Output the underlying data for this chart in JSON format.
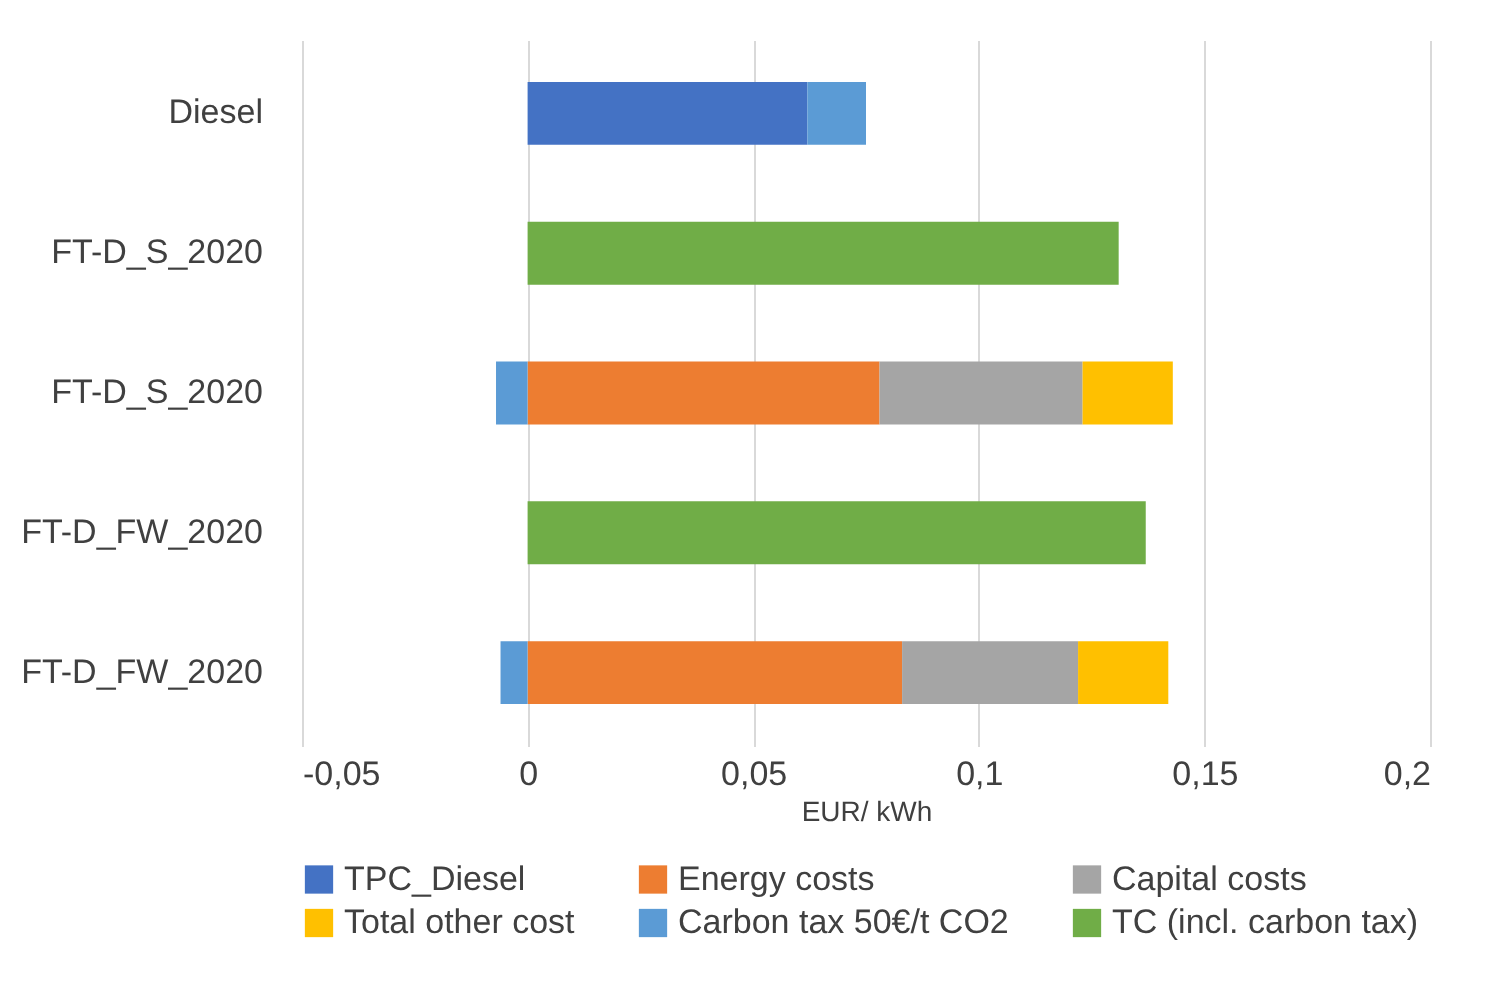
{
  "chart_data": {
    "type": "bar",
    "orientation": "horizontal",
    "stacked": true,
    "categories": [
      "Diesel",
      "FT-D_S_2020",
      "FT-D_S_2020",
      "FT-D_FW_2020",
      "FT-D_FW_2020"
    ],
    "series": [
      {
        "name": "TPC_Diesel",
        "color": "#4472c4",
        "values": [
          0.062,
          null,
          null,
          null,
          null
        ]
      },
      {
        "name": "Energy costs",
        "color": "#ed7d31",
        "values": [
          null,
          null,
          0.078,
          null,
          0.083
        ]
      },
      {
        "name": "Capital costs",
        "color": "#a5a5a5",
        "values": [
          null,
          null,
          0.045,
          null,
          0.039
        ]
      },
      {
        "name": "Total other cost",
        "color": "#ffc000",
        "values": [
          null,
          null,
          0.02,
          null,
          0.02
        ]
      },
      {
        "name": "Carbon tax 50€/t CO2",
        "color": "#5b9bd5",
        "values": [
          0.013,
          null,
          -0.007,
          null,
          -0.006
        ]
      },
      {
        "name": "TC (incl. carbon tax)",
        "color": "#70ad47",
        "values": [
          null,
          0.131,
          null,
          0.137,
          null
        ]
      }
    ],
    "xlabel": "EUR/ kWh",
    "xlim": [
      -0.05,
      0.2
    ],
    "xticks": [
      {
        "value": -0.05,
        "label": "-0,05"
      },
      {
        "value": 0,
        "label": "0"
      },
      {
        "value": 0.05,
        "label": "0,05"
      },
      {
        "value": 0.1,
        "label": "0,1"
      },
      {
        "value": 0.15,
        "label": "0,15"
      },
      {
        "value": 0.2,
        "label": "0,2"
      }
    ],
    "grid": "x",
    "legend": "bottom"
  }
}
